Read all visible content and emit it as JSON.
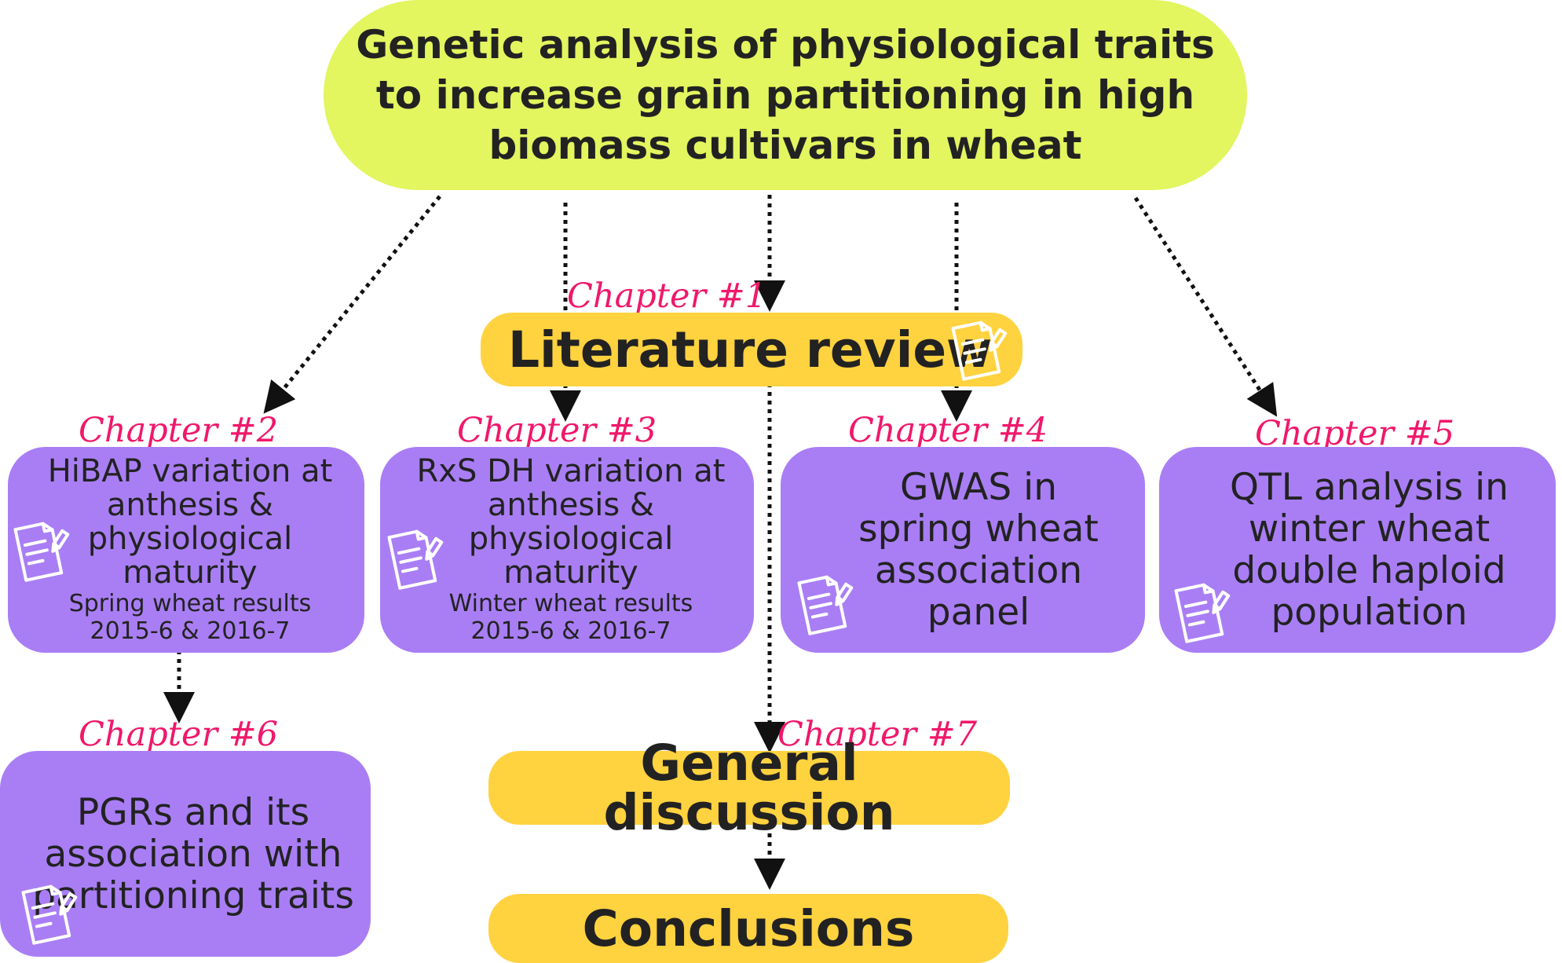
{
  "title": "Genetic analysis of physiological traits to increase grain partitioning in high biomass cultivars in wheat",
  "literature": {
    "chapter": "Chapter #1",
    "label": "Literature review"
  },
  "ch2": {
    "chapter": "Chapter #2",
    "text": "HiBAP variation at anthesis & physiological maturity",
    "sub1": "Spring wheat results",
    "sub2": "2015-6 & 2016-7"
  },
  "ch3": {
    "chapter": "Chapter #3",
    "text": "RxS DH variation at anthesis & physiological maturity",
    "sub1": "Winter wheat results",
    "sub2": "2015-6 & 2016-7"
  },
  "ch4": {
    "chapter": "Chapter #4",
    "text": "GWAS in spring wheat association panel"
  },
  "ch5": {
    "chapter": "Chapter #5",
    "text": "QTL analysis in winter wheat double haploid population"
  },
  "ch6": {
    "chapter": "Chapter #6",
    "text": "PGRs and its association with partitioning traits"
  },
  "discussion": {
    "chapter": "Chapter #7",
    "label": "General discussion"
  },
  "conclusions": {
    "label": "Conclusions"
  },
  "colors": {
    "title_fill": "#e3f55f",
    "yellow_fill": "#ffd23f",
    "purple_fill": "#a97ef5",
    "chapter_text": "#f0186b"
  },
  "icons": [
    "document-pen-icon"
  ]
}
